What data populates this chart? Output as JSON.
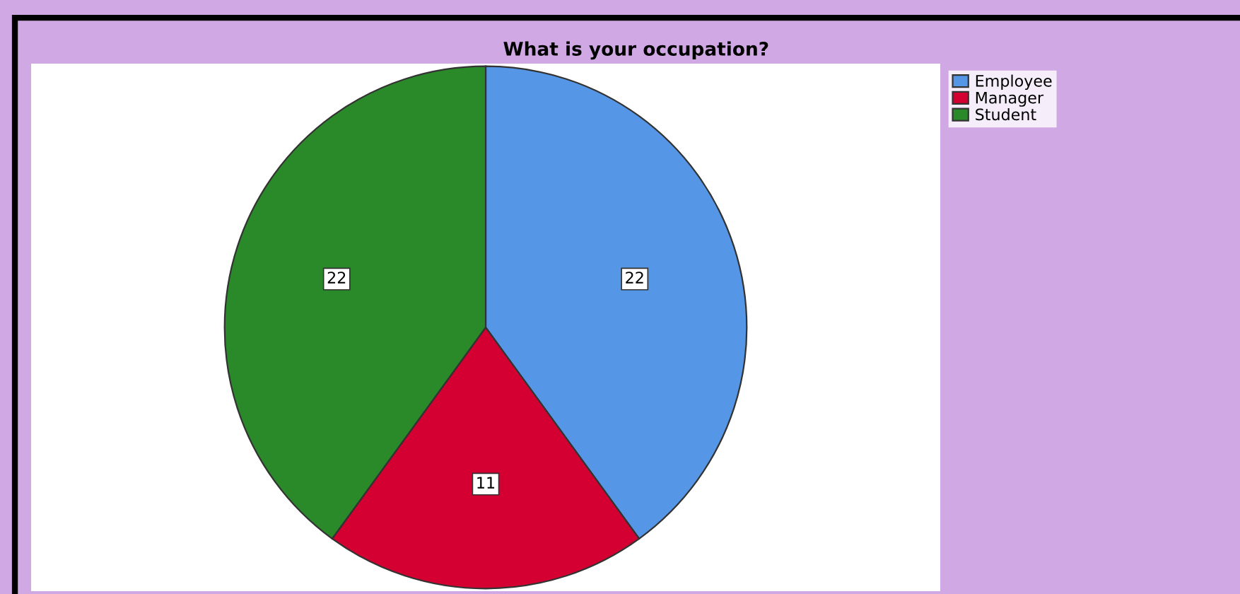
{
  "chart_data": {
    "type": "pie",
    "title": "What is your occupation?",
    "categories": [
      "Employee",
      "Manager",
      "Student"
    ],
    "values": [
      22,
      11,
      22
    ],
    "colors": [
      "#5596e6",
      "#d50032",
      "#2a8a2a"
    ],
    "data_labels": true,
    "legend": "top right"
  }
}
